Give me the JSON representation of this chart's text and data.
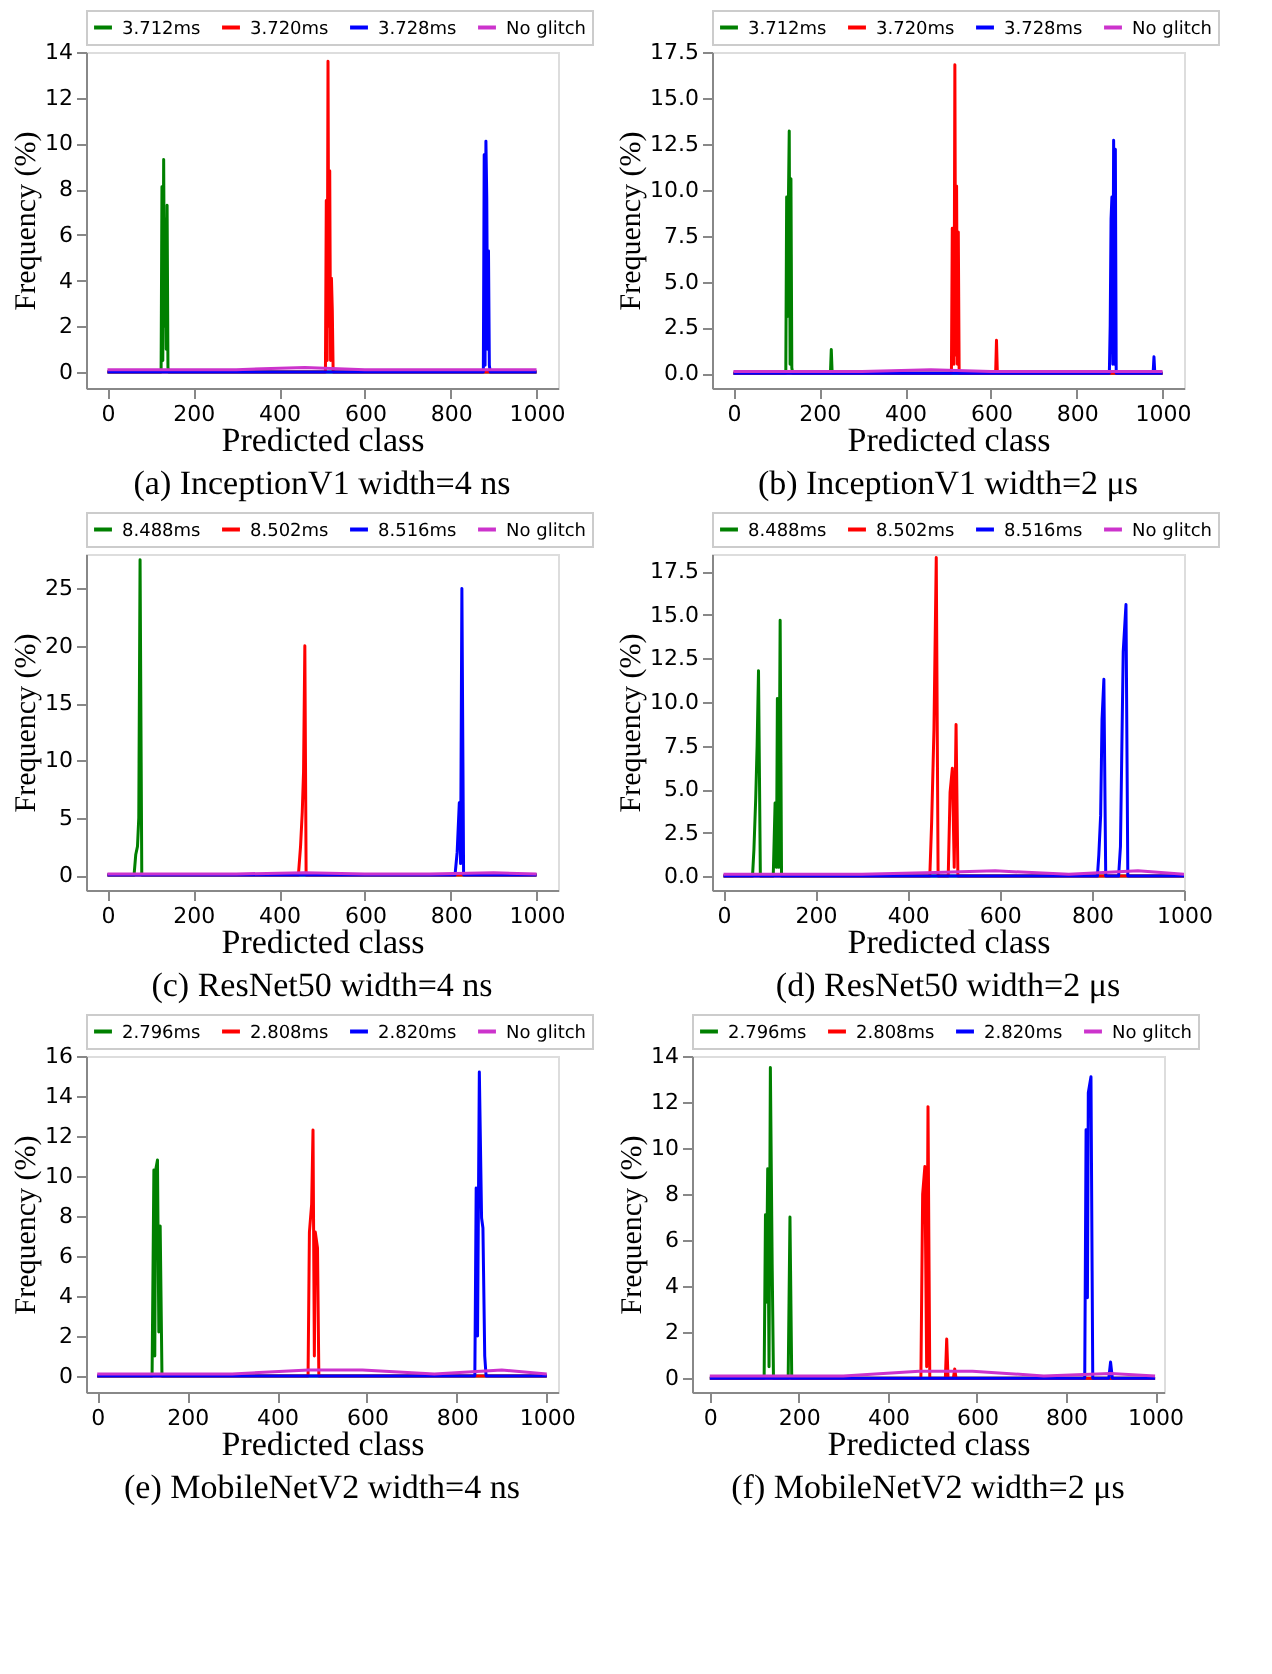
{
  "chart_data": [
    {
      "type": "line",
      "title": "(a) InceptionV1 width=4 ns",
      "xlabel": "Predicted class",
      "ylabel": "Frequency (%)",
      "legend": "top",
      "xlim": [
        -50,
        1050
      ],
      "xticks": [
        0,
        200,
        400,
        600,
        800,
        1000
      ],
      "ylim": [
        -0.7,
        14
      ],
      "yticks": [
        0,
        2,
        4,
        6,
        8,
        10,
        12,
        14
      ],
      "series": [
        {
          "name": "3.712ms",
          "color": "#008000",
          "x": [
            0,
            125,
            127,
            129,
            131,
            133,
            135,
            137,
            139,
            141,
            143,
            1000
          ],
          "values": [
            0,
            0,
            8.1,
            0.5,
            9.3,
            2.0,
            6.7,
            1.0,
            7.3,
            0.2,
            0,
            0
          ]
        },
        {
          "name": "3.720ms",
          "color": "#ff0000",
          "x": [
            0,
            508,
            510,
            512,
            514,
            516,
            518,
            520,
            522,
            524,
            526,
            1000
          ],
          "values": [
            0,
            0,
            7.5,
            0.5,
            13.6,
            2.0,
            8.8,
            0.5,
            4.1,
            2.7,
            0,
            0
          ]
        },
        {
          "name": "3.728ms",
          "color": "#0000ff",
          "x": [
            0,
            876,
            878,
            880,
            882,
            884,
            886,
            888,
            890,
            892,
            894,
            1000
          ],
          "values": [
            0,
            0,
            9.5,
            0.3,
            10.1,
            7.6,
            1.0,
            5.3,
            0.3,
            0,
            0,
            0
          ]
        },
        {
          "name": "No glitch",
          "color": "#cc33cc",
          "x": [
            0,
            150,
            300,
            460,
            600,
            750,
            900,
            1000
          ],
          "values": [
            0.1,
            0.1,
            0.1,
            0.2,
            0.1,
            0.1,
            0.1,
            0.1
          ]
        }
      ]
    },
    {
      "type": "line",
      "title": "(b) InceptionV1 width=2 μs",
      "xlabel": "Predicted class",
      "ylabel": "Frequency (%)",
      "legend": "top",
      "xlim": [
        -50,
        1050
      ],
      "xticks": [
        0,
        200,
        400,
        600,
        800,
        1000
      ],
      "ylim": [
        -0.8,
        17.5
      ],
      "yticks": [
        {
          "value": 0,
          "label": "0.0"
        },
        2.5,
        {
          "value": 5,
          "label": "5.0"
        },
        7.5,
        {
          "value": 10,
          "label": "10.0"
        },
        12.5,
        {
          "value": 15,
          "label": "15.0"
        },
        17.5
      ],
      "series": [
        {
          "name": "3.712ms",
          "color": "#008000",
          "x": [
            0,
            122,
            124,
            126,
            128,
            130,
            132,
            134,
            136,
            138,
            140,
            142,
            226,
            228,
            230,
            1000
          ],
          "values": [
            0,
            0,
            9.6,
            3.1,
            9.2,
            13.2,
            0.5,
            10.6,
            0.3,
            0,
            0,
            0,
            0,
            1.3,
            0,
            0
          ]
        },
        {
          "name": "3.720ms",
          "color": "#ff0000",
          "x": [
            0,
            508,
            510,
            512,
            514,
            516,
            518,
            520,
            522,
            524,
            526,
            611,
            613,
            615,
            1000
          ],
          "values": [
            0,
            0,
            7.9,
            4.2,
            0.5,
            16.8,
            1.0,
            10.2,
            0.5,
            7.7,
            0,
            0,
            1.8,
            0,
            0
          ]
        },
        {
          "name": "3.728ms",
          "color": "#0000ff",
          "x": [
            0,
            876,
            878,
            880,
            882,
            884,
            886,
            888,
            890,
            892,
            978,
            980,
            982,
            1000
          ],
          "values": [
            0,
            0,
            2.6,
            8.4,
            9.6,
            0.5,
            12.7,
            0.5,
            12.2,
            0,
            0,
            0.9,
            0,
            0
          ]
        },
        {
          "name": "No glitch",
          "color": "#cc33cc",
          "x": [
            0,
            150,
            300,
            460,
            600,
            750,
            900,
            1000
          ],
          "values": [
            0.1,
            0.1,
            0.1,
            0.2,
            0.1,
            0.1,
            0.1,
            0.1
          ]
        }
      ]
    },
    {
      "type": "line",
      "title": "(c) ResNet50 width=4 ns",
      "xlabel": "Predicted class",
      "ylabel": "Frequency (%)",
      "legend": "top",
      "xlim": [
        -50,
        1050
      ],
      "xticks": [
        0,
        200,
        400,
        600,
        800,
        1000
      ],
      "ylim": [
        -1.3,
        28
      ],
      "yticks": [
        0,
        5,
        10,
        15,
        20,
        25
      ],
      "series": [
        {
          "name": "8.488ms",
          "color": "#008000",
          "x": [
            0,
            62,
            66,
            70,
            73,
            76,
            80,
            1000
          ],
          "values": [
            0,
            0,
            1.8,
            2.5,
            5.0,
            27.5,
            0,
            0
          ]
        },
        {
          "name": "8.502ms",
          "color": "#ff0000",
          "x": [
            0,
            445,
            450,
            454,
            457,
            460,
            463,
            1000
          ],
          "values": [
            0,
            0,
            2.5,
            5.5,
            9.0,
            20.0,
            0,
            0
          ]
        },
        {
          "name": "8.516ms",
          "color": "#0000ff",
          "x": [
            0,
            810,
            815,
            820,
            823,
            826,
            830,
            1000
          ],
          "values": [
            0,
            0,
            2.0,
            6.3,
            1.0,
            25.0,
            0,
            0
          ]
        },
        {
          "name": "No glitch",
          "color": "#cc33cc",
          "x": [
            0,
            150,
            300,
            460,
            600,
            750,
            900,
            1000
          ],
          "values": [
            0.1,
            0.1,
            0.1,
            0.2,
            0.1,
            0.1,
            0.2,
            0.1
          ]
        }
      ]
    },
    {
      "type": "line",
      "title": "(d) ResNet50 width=2 μs",
      "xlabel": "Predicted class",
      "ylabel": "Frequency (%)",
      "legend": "top",
      "xlim": [
        -25,
        1000
      ],
      "xticks": [
        0,
        200,
        400,
        600,
        800,
        {
          "value": 1000,
          "label": "1000"
        }
      ],
      "ylim": [
        -0.8,
        18.5
      ],
      "yticks": [
        {
          "value": 0,
          "label": "0.0"
        },
        2.5,
        {
          "value": 5,
          "label": "5.0"
        },
        7.5,
        {
          "value": 10,
          "label": "10.0"
        },
        12.5,
        {
          "value": 15,
          "label": "15.0"
        },
        17.5
      ],
      "series": [
        {
          "name": "8.488ms",
          "color": "#008000",
          "x": [
            0,
            63,
            66,
            70,
            73,
            76,
            80,
            108,
            112,
            115,
            117,
            120,
            123,
            126,
            1000
          ],
          "values": [
            0,
            0,
            1.5,
            4.5,
            7.5,
            11.8,
            0,
            0,
            4.2,
            0.5,
            10.2,
            0.5,
            14.7,
            0,
            0
          ]
        },
        {
          "name": "8.502ms",
          "color": "#ff0000",
          "x": [
            0,
            448,
            452,
            457,
            462,
            466,
            488,
            492,
            497,
            501,
            505,
            509,
            1000
          ],
          "values": [
            0,
            0,
            3.1,
            8.4,
            18.3,
            0,
            0,
            4.8,
            6.2,
            0.5,
            8.7,
            0,
            0
          ]
        },
        {
          "name": "8.516ms",
          "color": "#0000ff",
          "x": [
            0,
            812,
            815,
            819,
            822,
            826,
            830,
            858,
            862,
            868,
            874,
            878,
            1000
          ],
          "values": [
            0,
            0,
            1.2,
            3.5,
            9.0,
            11.3,
            0,
            0,
            1.7,
            12.9,
            15.6,
            0,
            0
          ]
        },
        {
          "name": "No glitch",
          "color": "#cc33cc",
          "x": [
            0,
            150,
            300,
            460,
            590,
            750,
            900,
            1000
          ],
          "values": [
            0.1,
            0.1,
            0.1,
            0.2,
            0.3,
            0.1,
            0.3,
            0.1
          ]
        }
      ]
    },
    {
      "type": "line",
      "title": "(e) MobileNetV2 width=4 ns",
      "xlabel": "Predicted class",
      "ylabel": "Frequency (%)",
      "legend": "top",
      "xlim": [
        -25,
        1025
      ],
      "xticks": [
        0,
        200,
        400,
        600,
        800,
        1000
      ],
      "ylim": [
        -0.8,
        16
      ],
      "yticks": [
        0,
        2,
        4,
        6,
        8,
        10,
        12,
        14,
        16
      ],
      "series": [
        {
          "name": "2.796ms",
          "color": "#008000",
          "x": [
            0,
            122,
            126,
            128,
            130,
            134,
            137,
            140,
            144,
            1000
          ],
          "values": [
            0,
            0,
            10.3,
            1.0,
            10.3,
            10.8,
            2.2,
            7.5,
            0,
            0
          ]
        },
        {
          "name": "2.808ms",
          "color": "#ff0000",
          "x": [
            0,
            469,
            472,
            477,
            480,
            483,
            485,
            490,
            493,
            1000
          ],
          "values": [
            0,
            0,
            7.2,
            8.6,
            12.3,
            1.0,
            7.2,
            6.4,
            0,
            0
          ]
        },
        {
          "name": "2.820ms",
          "color": "#0000ff",
          "x": [
            0,
            840,
            843,
            846,
            850,
            855,
            858,
            862,
            865,
            1000
          ],
          "values": [
            0,
            0,
            9.4,
            2.0,
            15.2,
            7.9,
            7.4,
            1.0,
            0,
            0
          ]
        },
        {
          "name": "No glitch",
          "color": "#cc33cc",
          "x": [
            0,
            150,
            300,
            470,
            590,
            750,
            900,
            1000
          ],
          "values": [
            0.1,
            0.1,
            0.1,
            0.3,
            0.3,
            0.1,
            0.3,
            0.1
          ]
        }
      ]
    },
    {
      "type": "line",
      "title": "(f) MobileNetV2 width=2 μs",
      "xlabel": "Predicted class",
      "ylabel": "Frequency (%)",
      "legend": "top",
      "xlim": [
        -40,
        1020
      ],
      "xticks": [
        0,
        200,
        400,
        600,
        800,
        1000
      ],
      "ylim": [
        -0.6,
        14
      ],
      "yticks": [
        0,
        2,
        4,
        6,
        8,
        10,
        12,
        14
      ],
      "series": [
        {
          "name": "2.796ms",
          "color": "#008000",
          "x": [
            0,
            122,
            125,
            127,
            130,
            133,
            136,
            140,
            143,
            176,
            180,
            184,
            1000
          ],
          "values": [
            0,
            0,
            7.1,
            3.3,
            9.1,
            0.5,
            13.5,
            5.0,
            0,
            0,
            7.0,
            0,
            0
          ]
        },
        {
          "name": "2.808ms",
          "color": "#ff0000",
          "x": [
            0,
            474,
            478,
            483,
            487,
            490,
            494,
            529,
            532,
            535,
            547,
            550,
            553,
            1000
          ],
          "values": [
            0,
            0,
            8.0,
            9.2,
            0.5,
            11.8,
            0,
            0,
            1.7,
            0,
            0,
            0.4,
            0,
            0
          ]
        },
        {
          "name": "2.820ms",
          "color": "#0000ff",
          "x": [
            0,
            842,
            845,
            848,
            850,
            856,
            860,
            896,
            900,
            904,
            1000
          ],
          "values": [
            0,
            0,
            10.8,
            3.5,
            12.4,
            13.1,
            0,
            0,
            0.7,
            0,
            0
          ]
        },
        {
          "name": "No glitch",
          "color": "#cc33cc",
          "x": [
            0,
            150,
            300,
            470,
            590,
            750,
            900,
            1000
          ],
          "values": [
            0.1,
            0.1,
            0.1,
            0.3,
            0.3,
            0.1,
            0.2,
            0.1
          ]
        }
      ]
    }
  ]
}
